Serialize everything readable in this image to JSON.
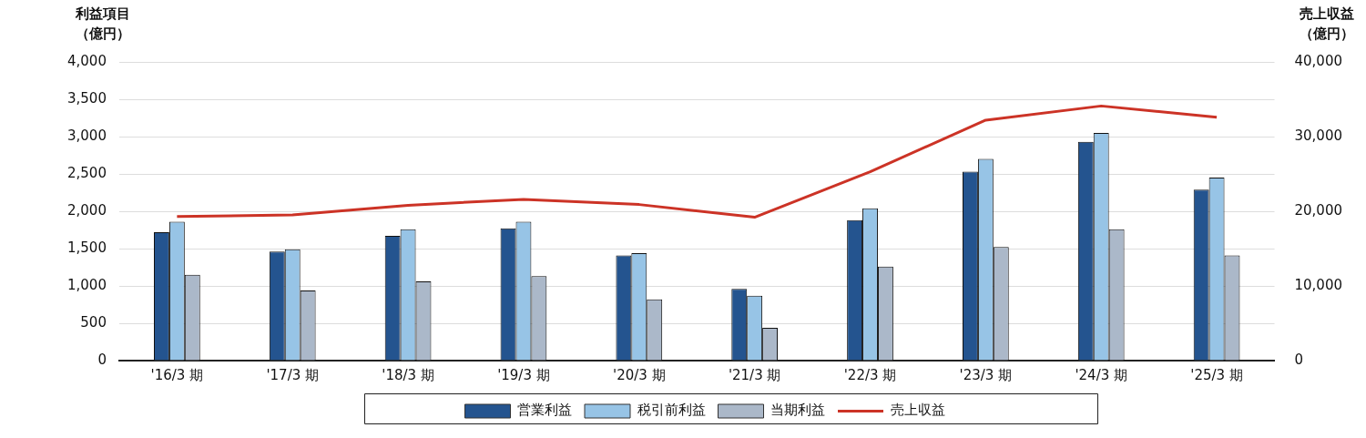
{
  "chart_data": {
    "type": "bar",
    "ylabel": "利益項目（億円）",
    "y2label": "売上収益（億円）",
    "categories": [
      "'16/3 期",
      "'17/3 期",
      "'18/3 期",
      "'19/3 期",
      "'20/3 期",
      "'21/3 期",
      "'22/3 期",
      "'23/3 期",
      "'24/3 期",
      "'25/3 期"
    ],
    "series": [
      {
        "name": "営業利益",
        "color": "#24548f",
        "values": [
          1720,
          1460,
          1670,
          1770,
          1410,
          960,
          1880,
          2530,
          2930,
          2290
        ]
      },
      {
        "name": "税引前利益",
        "color": "#97c4e6",
        "values": [
          1860,
          1490,
          1760,
          1860,
          1440,
          870,
          2040,
          2700,
          3050,
          2450
        ]
      },
      {
        "name": "当期利益",
        "color": "#abb8c9",
        "values": [
          1150,
          940,
          1060,
          1130,
          820,
          440,
          1260,
          1520,
          1760,
          1410
        ]
      },
      {
        "name": "売上収益",
        "type": "line",
        "axis": "y2",
        "color": "#cc3326",
        "values": [
          19300,
          19500,
          20800,
          21600,
          20900,
          19200,
          25300,
          32200,
          34100,
          32600
        ]
      }
    ],
    "ylim": [
      0,
      4000
    ],
    "yticks": [
      0,
      500,
      {
        "value": 1000,
        "label": "1,000"
      },
      {
        "value": 1500,
        "label": "1,500"
      },
      {
        "value": 2000,
        "label": "2,000"
      },
      {
        "value": 2500,
        "label": "2,500"
      },
      {
        "value": 3000,
        "label": "3,000"
      },
      {
        "value": 3500,
        "label": "3,500"
      },
      {
        "value": 4000,
        "label": "4,000"
      }
    ],
    "y2lim": [
      0,
      40000
    ],
    "y2ticks": [
      0,
      {
        "value": 10000,
        "label": "10,000"
      },
      {
        "value": 20000,
        "label": "20,000"
      },
      {
        "value": 30000,
        "label": "30,000"
      },
      {
        "value": 40000,
        "label": "40,000"
      }
    ],
    "grid": "y",
    "legend": "bottom",
    "marker": "none"
  }
}
